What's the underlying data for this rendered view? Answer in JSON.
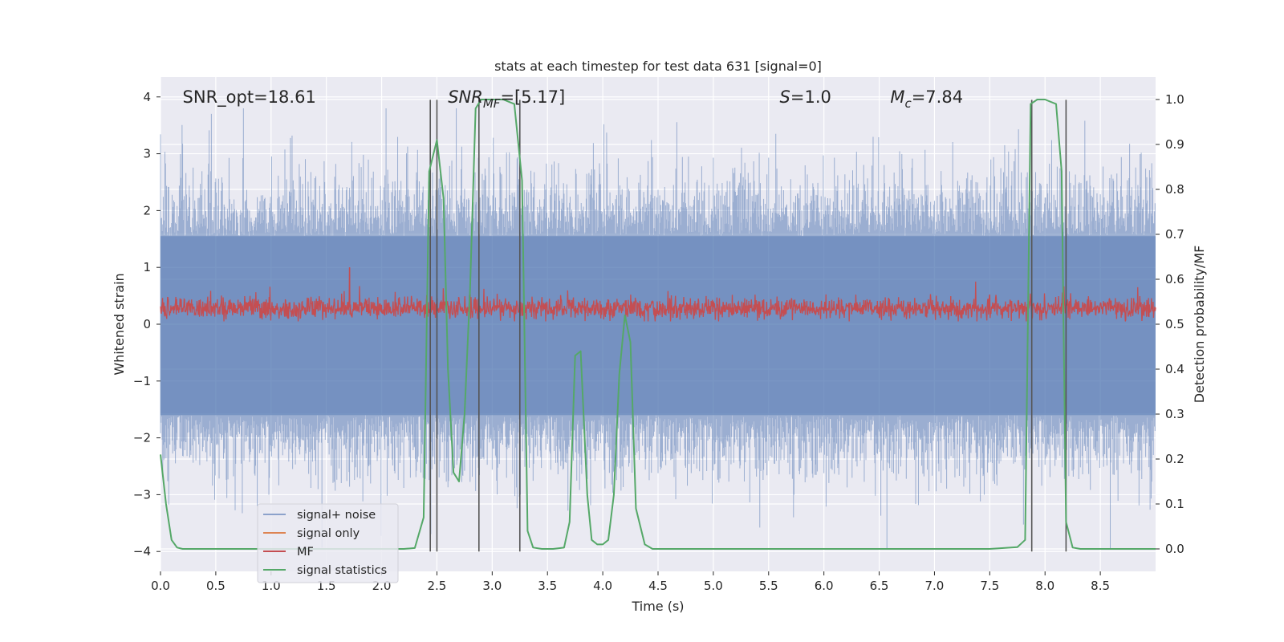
{
  "chart_data": {
    "type": "line",
    "title": "stats at each timestep for test data 631 [signal=0]",
    "xlabel": "Time (s)",
    "ylabel": "Whitened strain",
    "ylabel_right": "Detection probability/MF",
    "xlim": [
      0.0,
      9.0
    ],
    "ylim": [
      -4.35,
      4.35
    ],
    "ylim_right": [
      -0.05,
      1.05
    ],
    "xticks": [
      "0.0",
      "0.5",
      "1.0",
      "1.5",
      "2.0",
      "2.5",
      "3.0",
      "3.5",
      "4.0",
      "4.5",
      "5.0",
      "5.5",
      "6.0",
      "6.5",
      "7.0",
      "7.5",
      "8.0",
      "8.5"
    ],
    "xtick_values": [
      0.0,
      0.5,
      1.0,
      1.5,
      2.0,
      2.5,
      3.0,
      3.5,
      4.0,
      4.5,
      5.0,
      5.5,
      6.0,
      6.5,
      7.0,
      7.5,
      8.0,
      8.5
    ],
    "yticks": [
      "−4",
      "−3",
      "−2",
      "−1",
      "0",
      "1",
      "2",
      "3",
      "4"
    ],
    "ytick_values": [
      -4,
      -3,
      -2,
      -1,
      0,
      1,
      2,
      3,
      4
    ],
    "yticks_right": [
      "0.0",
      "0.1",
      "0.2",
      "0.3",
      "0.4",
      "0.5",
      "0.6",
      "0.7",
      "0.8",
      "0.9",
      "1.0"
    ],
    "ytick_right_values": [
      0.0,
      0.1,
      0.2,
      0.3,
      0.4,
      0.5,
      0.6,
      0.7,
      0.8,
      0.9,
      1.0
    ],
    "grid": true,
    "legend_position": "lower-left",
    "annotations": [
      {
        "text": "SNR_opt=18.61",
        "x": 0.2,
        "y": 4.0
      },
      {
        "base": "SNR",
        "sub": "MF",
        "rest": "=[5.17]",
        "x": 2.6,
        "y": 4.0
      },
      {
        "base": "S",
        "sub": "",
        "rest": "=1.0",
        "x": 5.6,
        "y": 4.0
      },
      {
        "base": "M",
        "sub": "c",
        "rest": "=7.84",
        "x": 6.6,
        "y": 4.0
      }
    ],
    "vlines": [
      2.44,
      2.5,
      2.88,
      3.25,
      7.88,
      8.19
    ],
    "vline_range": [
      -4.0,
      3.95
    ],
    "series": [
      {
        "name": "signal+ noise",
        "color": "#4c72b0",
        "kind": "noise",
        "amplitude_range": [
          -4.0,
          3.8
        ],
        "band": [
          -1.6,
          1.55
        ]
      },
      {
        "name": "signal only",
        "color": "#dd8452",
        "kind": "flat",
        "values": []
      },
      {
        "name": "MF",
        "color": "#c44e52",
        "kind": "noise",
        "band": [
          0.05,
          0.55
        ],
        "peak": {
          "x": 1.71,
          "y": 1.0
        }
      },
      {
        "name": "signal statistics",
        "color": "#55a868",
        "axis": "right",
        "x": [
          0.0,
          0.05,
          0.1,
          0.15,
          0.2,
          0.3,
          0.5,
          0.7,
          0.9,
          1.1,
          1.3,
          1.5,
          1.7,
          1.9,
          2.1,
          2.2,
          2.3,
          2.38,
          2.43,
          2.5,
          2.56,
          2.6,
          2.65,
          2.7,
          2.75,
          2.8,
          2.85,
          2.9,
          2.95,
          3.0,
          3.1,
          3.2,
          3.27,
          3.32,
          3.37,
          3.45,
          3.55,
          3.65,
          3.7,
          3.75,
          3.8,
          3.86,
          3.9,
          3.95,
          4.0,
          4.05,
          4.1,
          4.15,
          4.2,
          4.25,
          4.3,
          4.38,
          4.45,
          4.5,
          4.55,
          4.6,
          4.7,
          4.8,
          5.0,
          5.5,
          6.0,
          6.5,
          7.0,
          7.5,
          7.75,
          7.82,
          7.87,
          7.93,
          8.0,
          8.1,
          8.15,
          8.19,
          8.25,
          8.32,
          8.4,
          8.5,
          9.0
        ],
        "values": [
          0.21,
          0.1,
          0.02,
          0.003,
          0.0,
          0.0,
          0.0,
          0.0,
          0.0,
          0.0,
          0.0,
          0.0,
          0.0,
          0.0,
          0.0,
          0.0,
          0.002,
          0.07,
          0.84,
          0.91,
          0.78,
          0.4,
          0.17,
          0.15,
          0.3,
          0.58,
          0.98,
          1.0,
          1.0,
          1.0,
          1.0,
          0.99,
          0.82,
          0.04,
          0.003,
          0.0,
          0.0,
          0.003,
          0.06,
          0.43,
          0.44,
          0.12,
          0.02,
          0.01,
          0.01,
          0.02,
          0.12,
          0.39,
          0.52,
          0.46,
          0.09,
          0.01,
          0.0,
          0.0,
          0.0,
          0.0,
          0.0,
          0.0,
          0.0,
          0.0,
          0.0,
          0.0,
          0.0,
          0.0,
          0.004,
          0.02,
          0.99,
          1.0,
          1.0,
          0.99,
          0.84,
          0.06,
          0.003,
          0.0,
          0.0,
          0.0,
          0.0
        ]
      }
    ]
  }
}
